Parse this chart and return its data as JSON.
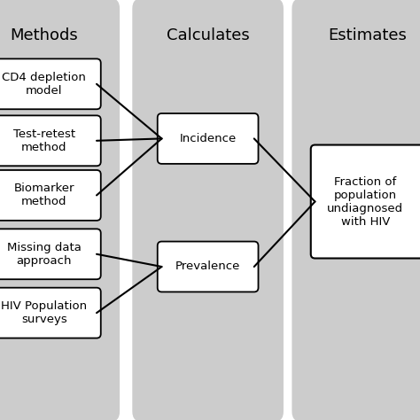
{
  "background_color": "#ffffff",
  "panel_color": "#cccccc",
  "box_color": "#ffffff",
  "box_edge_color": "#000000",
  "text_color": "#000000",
  "column_headers": [
    "Methods",
    "Calculates",
    "Estimates"
  ],
  "header_fontsize": 13,
  "body_fontsize": 9.5,
  "methods_boxes": [
    {
      "label": "CD4 depletion\nmodel"
    },
    {
      "label": "Test-retest\nmethod"
    },
    {
      "label": "Biomarker\nmethod"
    },
    {
      "label": "Missing data\napproach"
    },
    {
      "label": "HIV Population\nsurveys"
    }
  ],
  "calc_boxes": [
    {
      "label": "Incidence"
    },
    {
      "label": "Prevalence"
    }
  ],
  "estimate_box": {
    "label": "Fraction of\npopulation\nundiagnosed\nwith HIV"
  }
}
